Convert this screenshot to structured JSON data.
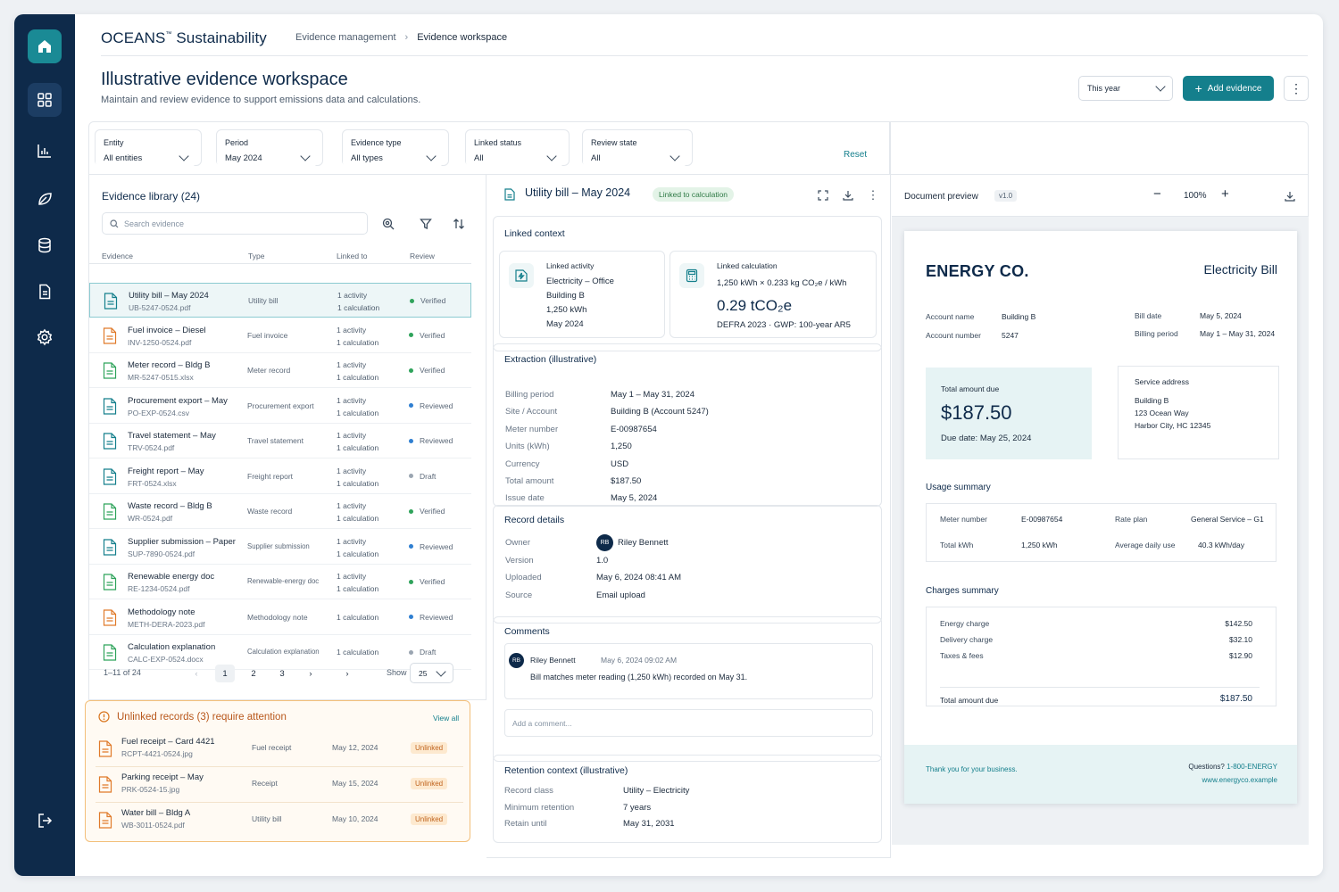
{
  "brand": {
    "name": "OCEANS",
    "tm": "™",
    "suffix": " Sustainability"
  },
  "breadcrumb": {
    "parent": "Evidence management",
    "sep": "›",
    "current": "Evidence workspace"
  },
  "page": {
    "title": "Illustrative evidence workspace",
    "subtitle": "Maintain and review evidence to support emissions data and calculations."
  },
  "header": {
    "period_select": "This year",
    "add_label": "Add evidence",
    "more": "⋮"
  },
  "filters": [
    {
      "label": "Entity",
      "value": "All entities"
    },
    {
      "label": "Period",
      "value": "May 2024"
    },
    {
      "label": "Evidence type",
      "value": "All types"
    },
    {
      "label": "Linked status",
      "value": "All"
    },
    {
      "label": "Review state",
      "value": "All"
    }
  ],
  "reset_label": "Reset",
  "library": {
    "title": "Evidence library (24)",
    "search_placeholder": "Search evidence",
    "columns": [
      "Evidence",
      "Type",
      "Linked to",
      "Review"
    ],
    "rows": [
      {
        "name": "Utility bill – May 2024",
        "file": "UB-5247-0524.pdf",
        "type": "Utility bill",
        "link1": "1 activity",
        "link2": "1 calculation",
        "review": "Verified",
        "status_color": "#2fa35b",
        "icon_color": "#147f8c"
      },
      {
        "name": "Fuel invoice – Diesel",
        "file": "INV-1250-0524.pdf",
        "type": "Fuel invoice",
        "link1": "1 activity",
        "link2": "1 calculation",
        "review": "Verified",
        "status_color": "#2fa35b",
        "icon_color": "#e07a2a"
      },
      {
        "name": "Meter record – Bldg B",
        "file": "MR-5247-0515.xlsx",
        "type": "Meter record",
        "link1": "1 activity",
        "link2": "1 calculation",
        "review": "Verified",
        "status_color": "#2fa35b",
        "icon_color": "#2fa35b"
      },
      {
        "name": "Procurement export – May",
        "file": "PO-EXP-0524.csv",
        "type": "Procurement export",
        "link1": "1 activity",
        "link2": "1 calculation",
        "review": "Reviewed",
        "status_color": "#2f7fd1",
        "icon_color": "#147f8c"
      },
      {
        "name": "Travel statement – May",
        "file": "TRV-0524.pdf",
        "type": "Travel statement",
        "link1": "1 activity",
        "link2": "1 calculation",
        "review": "Reviewed",
        "status_color": "#2f7fd1",
        "icon_color": "#147f8c"
      },
      {
        "name": "Freight report – May",
        "file": "FRT-0524.xlsx",
        "type": "Freight report",
        "link1": "1 activity",
        "link2": "1 calculation",
        "review": "Draft",
        "status_color": "#9aa5b1",
        "icon_color": "#147f8c"
      },
      {
        "name": "Waste record – Bldg B",
        "file": "WR-0524.pdf",
        "type": "Waste record",
        "link1": "1 activity",
        "link2": "1 calculation",
        "review": "Verified",
        "status_color": "#2fa35b",
        "icon_color": "#2fa35b"
      },
      {
        "name": "Supplier submission – Paper",
        "file": "SUP-7890-0524.pdf",
        "type": "Supplier submission",
        "link1": "1 activity",
        "link2": "1 calculation",
        "review": "Reviewed",
        "status_color": "#2f7fd1",
        "icon_color": "#147f8c"
      },
      {
        "name": "Renewable energy doc",
        "file": "RE-1234-0524.pdf",
        "type": "Renewable-energy doc",
        "link1": "1 activity",
        "link2": "1 calculation",
        "review": "Verified",
        "status_color": "#2fa35b",
        "icon_color": "#2fa35b"
      },
      {
        "name": "Methodology note",
        "file": "METH-DERA-2023.pdf",
        "type": "Methodology note",
        "link1": "1 calculation",
        "link2": "",
        "review": "Reviewed",
        "status_color": "#2f7fd1",
        "icon_color": "#e07a2a"
      },
      {
        "name": "Calculation explanation",
        "file": "CALC-EXP-0524.docx",
        "type": "Calculation explanation",
        "link1": "1 calculation",
        "link2": "",
        "review": "Draft",
        "status_color": "#9aa5b1",
        "icon_color": "#2fa35b"
      }
    ],
    "pager": {
      "range": "1–11 of 24",
      "pages": [
        "1",
        "2",
        "3"
      ],
      "show_label": "Show",
      "per_page": "25"
    }
  },
  "unlinked": {
    "title": "Unlinked records (3) require attention",
    "view_all": "View all",
    "rows": [
      {
        "name": "Fuel receipt – Card 4421",
        "file": "RCPT-4421-0524.jpg",
        "type": "Fuel receipt",
        "date": "May 12, 2024",
        "badge": "Unlinked"
      },
      {
        "name": "Parking receipt – May",
        "file": "PRK-0524-15.jpg",
        "type": "Receipt",
        "date": "May 15, 2024",
        "badge": "Unlinked"
      },
      {
        "name": "Water bill – Bldg A",
        "file": "WB-3011-0524.pdf",
        "type": "Utility bill",
        "date": "May 10, 2024",
        "badge": "Unlinked"
      }
    ]
  },
  "detail": {
    "title": "Utility bill – May 2024",
    "badge": "Linked to calculation",
    "linked_context": "Linked context",
    "activity": {
      "heading": "Linked activity",
      "line1": "Electricity – Office",
      "line2": "Building B",
      "line3": "1,250 kWh",
      "line4": "May 2024"
    },
    "calculation": {
      "heading": "Linked calculation",
      "formula": "1,250 kWh × 0.233 kg CO₂e / kWh",
      "result": "0.29 tCO₂e",
      "source": "DEFRA 2023 · GWP: 100-year AR5"
    },
    "extraction": {
      "title": "Extraction (illustrative)",
      "fields": [
        {
          "k": "Billing period",
          "v": "May 1 – May 31, 2024"
        },
        {
          "k": "Site / Account",
          "v": "Building B (Account 5247)"
        },
        {
          "k": "Meter number",
          "v": "E-00987654"
        },
        {
          "k": "Units (kWh)",
          "v": "1,250"
        },
        {
          "k": "Currency",
          "v": "USD"
        },
        {
          "k": "Total amount",
          "v": "$187.50"
        },
        {
          "k": "Issue date",
          "v": "May 5, 2024"
        }
      ]
    },
    "record": {
      "title": "Record details",
      "fields": [
        {
          "k": "Owner",
          "v": "Riley Bennett"
        },
        {
          "k": "Version",
          "v": "1.0"
        },
        {
          "k": "Uploaded",
          "v": "May 6, 2024 08:41 AM"
        },
        {
          "k": "Source",
          "v": "Email upload"
        }
      ],
      "owner_initials": "RB"
    },
    "comments": {
      "title": "Comments",
      "author": "Riley Bennett",
      "initials": "RB",
      "time": "May 6, 2024 09:02 AM",
      "text": "Bill matches meter reading (1,250 kWh) recorded on May 31.",
      "placeholder": "Add a comment..."
    },
    "retention": {
      "title": "Retention context (illustrative)",
      "fields": [
        {
          "k": "Record class",
          "v": "Utility – Electricity"
        },
        {
          "k": "Minimum retention",
          "v": "7 years"
        },
        {
          "k": "Retain until",
          "v": "May 31, 2031"
        }
      ]
    }
  },
  "preview": {
    "title": "Document preview",
    "version": "v1.0",
    "zoom": "100%",
    "doc": {
      "company": "ENERGY CO.",
      "doc_title": "Electricity Bill",
      "account_name_k": "Account name",
      "account_name_v": "Building B",
      "account_number_k": "Account number",
      "account_number_v": "5247",
      "bill_date_k": "Bill date",
      "bill_date_v": "May 5, 2024",
      "billing_period_k": "Billing period",
      "billing_period_v": "May 1 – May 31, 2024",
      "total_due_label": "Total amount due",
      "total_due": "$187.50",
      "due_date": "Due date: May 25, 2024",
      "service_address_label": "Service address",
      "addr1": "Building B",
      "addr2": "123 Ocean Way",
      "addr3": "Harbor City, HC 12345",
      "usage_title": "Usage summary",
      "meter_k": "Meter number",
      "meter_v": "E-00987654",
      "rate_k": "Rate plan",
      "rate_v": "General Service – G1",
      "kwh_k": "Total kWh",
      "kwh_v": "1,250 kWh",
      "avg_k": "Average daily use",
      "avg_v": "40.3 kWh/day",
      "charges_title": "Charges summary",
      "charges": [
        {
          "k": "Energy charge",
          "v": "$142.50"
        },
        {
          "k": "Delivery charge",
          "v": "$32.10"
        },
        {
          "k": "Taxes & fees",
          "v": "$12.90"
        }
      ],
      "total_k": "Total amount due",
      "total_v": "$187.50",
      "thanks": "Thank you for your business.",
      "questions": "Questions?",
      "phone": "1-800-ENERGY",
      "site": "www.energyco.example"
    }
  }
}
